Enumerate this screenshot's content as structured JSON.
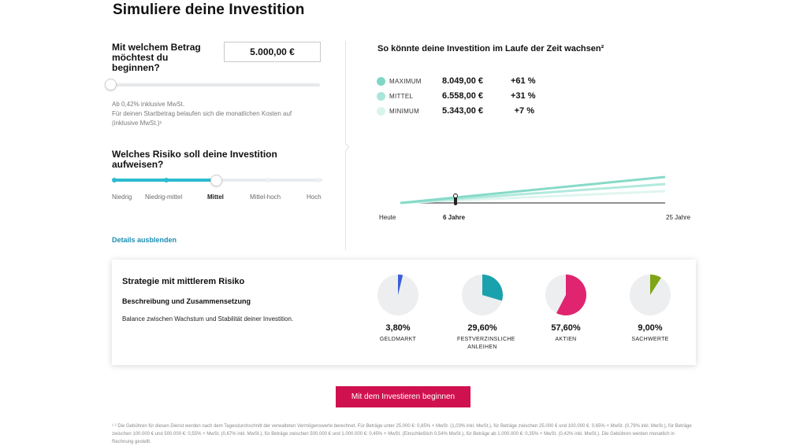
{
  "page_title": "Simuliere deine Investition",
  "amount": {
    "question": "Mit welchem Betrag möchtest du beginnen?",
    "value": "5.000,00 €",
    "slider_fraction": 0.0,
    "fee_line1": "Ab 0,42% inklusive MwSt.",
    "fee_line2": "Für deinen Startbetrag belaufen sich die monatlichen Kosten auf (inklusive MwSt.)¹"
  },
  "risk": {
    "question": "Welches Risiko soll deine Investition aufweisen?",
    "levels": [
      "Niedrig",
      "Niedrig-mittel",
      "Mittel",
      "Mittel-hoch",
      "Hoch"
    ],
    "selected_index": 2,
    "accent_color": "#2bbbd0"
  },
  "details_link": "Details ausblenden",
  "growth": {
    "title": "So könnte deine Investition im Laufe der Zeit wachsen²",
    "scenarios": [
      {
        "name": "MAXIMUM",
        "value": "8.049,00 €",
        "pct": "+61 %",
        "color": "#7fd8c4"
      },
      {
        "name": "MITTEL",
        "value": "6.558,00 €",
        "pct": "+31 %",
        "color": "#a9e6d8"
      },
      {
        "name": "MINIMUM",
        "value": "5.343,00 €",
        "pct": "+7 %",
        "color": "#d8f4ee"
      }
    ],
    "x_start": "Heute",
    "x_marker": "6 Jahre",
    "x_end": "25 Jahre"
  },
  "strategy": {
    "title": "Strategie mit mittlerem Risiko",
    "subtitle": "Beschreibung und Zusammensetzung",
    "description": "Balance zwischen Wachstum und Stabilität deiner Investition.",
    "allocations": [
      {
        "pct": "3,80%",
        "fraction": 0.038,
        "label": "GELDMARKT",
        "color": "#3b5ed8"
      },
      {
        "pct": "29,60%",
        "fraction": 0.296,
        "label": "FESTVERZINSLICHE ANLEIHEN",
        "color": "#19a2ad"
      },
      {
        "pct": "57,60%",
        "fraction": 0.576,
        "label": "AKTIEN",
        "color": "#e0246f"
      },
      {
        "pct": "9,00%",
        "fraction": 0.09,
        "label": "SACHWERTE",
        "color": "#7fa514"
      }
    ]
  },
  "cta_label": "Mit dem Investieren beginnen",
  "footnote": "¹ ² Die Gebühren für diesen Dienst werden nach dem Tagesdurchschnitt der verwalteten Vermögenswerte berechnet. Für Beträge unter 25.000 €: 0,85% + MwSt. (1,03% inkl. MwSt.), für Beträge zwischen 25.000 € und 100.000 €: 0,65% + MwSt. (0,79% inkl. MwSt.), für Beträge zwischen 100.000 € und 500.000 €: 0,55% + MwSt. (0,67% inkl. MwSt.), für Beträge zwischen 500.000 € und 1.000.000 €: 0,45% + MwSt. (Einschließlich 0,54% MwSt.), für Beträge ab 1.000.000 €: 0,35% + MwSt. (0,42% inkl. MwSt.). Die Gebühren werden monatlich in Rechnung gestellt."
}
